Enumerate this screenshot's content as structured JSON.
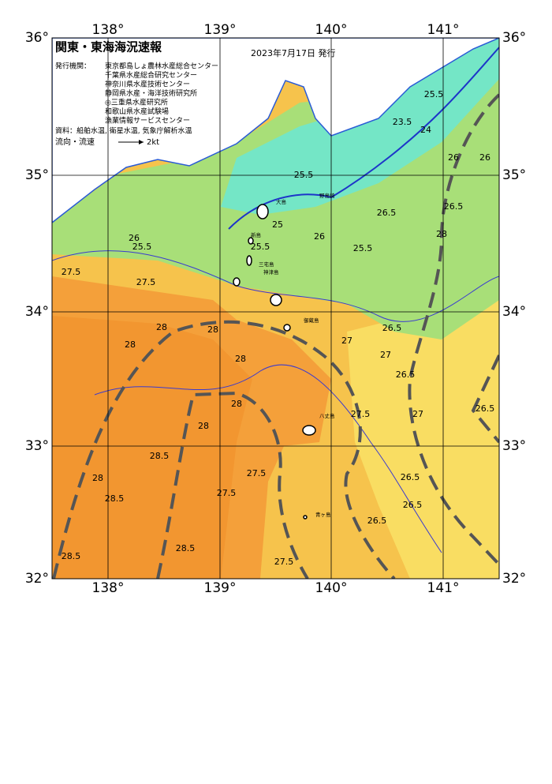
{
  "header": {
    "title": "関東・東海海況速報",
    "date": "2023年7月17日 発行"
  },
  "issuers": {
    "label": "発行機関：",
    "names": [
      "東京都島しょ農林水産総合センター",
      "千葉県水産総合研究センター",
      "神奈川県水産技術センター",
      "静岡県水産・海洋技術研究所",
      "◎三重県水産研究所",
      "和歌山県水産試験場",
      "漁業情報サービスセンター"
    ]
  },
  "sources": "資料：船舶水温, 衛星水温, 気象庁解析水温",
  "legend": {
    "label": "流向・流速",
    "speed": "2kt"
  },
  "axes": {
    "lon_labels": [
      "138°",
      "139°",
      "140°",
      "141°"
    ],
    "lat_labels": [
      "36°",
      "35°",
      "34°",
      "33°",
      "32°"
    ]
  },
  "contour_labels": [
    "27.5",
    "27.5",
    "26",
    "25.5",
    "28",
    "28",
    "28",
    "28",
    "28",
    "28",
    "28.5",
    "28",
    "28.5",
    "28.5",
    "28.5",
    "27.5",
    "27.5",
    "27.5",
    "27.5",
    "27",
    "27",
    "26.5",
    "26.5",
    "27",
    "26.5",
    "26.5",
    "26.5",
    "26.5",
    "26.5",
    "25.5",
    "25",
    "25.5",
    "26",
    "25.5",
    "23.5",
    "24",
    "25.5",
    "26",
    "26.5",
    "28",
    "26"
  ],
  "places": [
    "大島",
    "新島",
    "神津島",
    "三宅島",
    "御蔵島",
    "八丈島",
    "青ヶ島",
    "野島崎"
  ]
}
